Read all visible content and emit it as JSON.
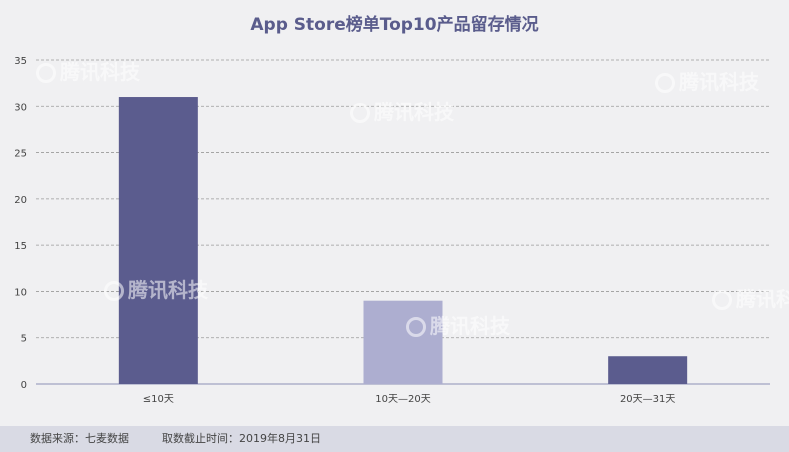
{
  "chart_data": {
    "type": "bar",
    "title": "App Store榜单Top10产品留存情况",
    "categories": [
      "≤10天",
      "10天—20天",
      "20天—31天"
    ],
    "values": [
      31,
      9,
      3
    ],
    "bar_colors": [
      "#5b5c8e",
      "#adaed0",
      "#5b5c8e"
    ],
    "ylim": [
      0,
      35
    ],
    "yticks": [
      0,
      5,
      10,
      15,
      20,
      25,
      30,
      35
    ],
    "grid": true,
    "xlabel": "",
    "ylabel": ""
  },
  "footer": {
    "source": "数据来源：七麦数据",
    "date": "取数截止时间：2019年8月31日"
  },
  "watermark": "腾讯科技",
  "colors": {
    "title": "#5a5c8c",
    "grid": "#9a9a9a",
    "axis": "#8d8fb5",
    "footer_bg": "#d9dae4"
  }
}
